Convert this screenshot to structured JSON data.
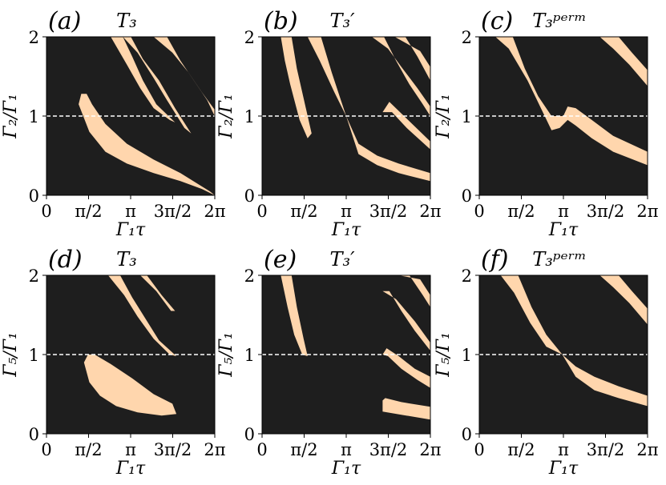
{
  "figure": {
    "background": "#ffffff",
    "plot_background": "#1e1e1e",
    "region_color": "#ffd6ad",
    "reference_line_color": "#ffffff"
  },
  "chart_data": [
    {
      "type": "heatmap",
      "panel_label": "(a)",
      "title": "T₃",
      "xlabel": "Γ₁τ",
      "ylabel": "Γ₂/Γ₁",
      "xlim": [
        0,
        6.2832
      ],
      "ylim": [
        0,
        2
      ],
      "xticks": [
        0,
        1.5708,
        3.1416,
        4.7124,
        6.2832
      ],
      "xtick_labels": [
        "0",
        "π/2",
        "π",
        "3π/2",
        "2π"
      ],
      "yticks": [
        0,
        1,
        2
      ],
      "ytick_labels": [
        "0",
        "1",
        "2"
      ],
      "reference_line_y": 1,
      "regions": [
        [
          [
            1.3,
            1.28
          ],
          [
            1.2,
            1.15
          ],
          [
            1.6,
            0.8
          ],
          [
            2.2,
            0.55
          ],
          [
            3.0,
            0.4
          ],
          [
            4.0,
            0.28
          ],
          [
            5.0,
            0.18
          ],
          [
            5.8,
            0.08
          ],
          [
            6.28,
            0.0
          ],
          [
            6.1,
            0.05
          ],
          [
            5.0,
            0.28
          ],
          [
            4.0,
            0.45
          ],
          [
            3.0,
            0.65
          ],
          [
            2.2,
            0.9
          ],
          [
            1.7,
            1.15
          ],
          [
            1.5,
            1.28
          ]
        ],
        [
          [
            2.4,
            2.0
          ],
          [
            2.85,
            2.0
          ],
          [
            3.2,
            1.75
          ],
          [
            3.6,
            1.45
          ],
          [
            4.1,
            1.15
          ],
          [
            4.8,
            0.92
          ],
          [
            4.6,
            0.95
          ],
          [
            4.0,
            1.1
          ],
          [
            3.5,
            1.35
          ],
          [
            3.0,
            1.65
          ]
        ],
        [
          [
            2.85,
            2.0
          ],
          [
            3.15,
            2.0
          ],
          [
            3.6,
            1.72
          ],
          [
            4.2,
            1.45
          ],
          [
            4.8,
            1.1
          ],
          [
            5.4,
            0.78
          ],
          [
            5.15,
            0.85
          ],
          [
            4.5,
            1.2
          ],
          [
            4.0,
            1.48
          ],
          [
            3.4,
            1.8
          ]
        ],
        [
          [
            4.0,
            2.0
          ],
          [
            4.5,
            2.0
          ],
          [
            5.0,
            1.7
          ],
          [
            5.5,
            1.45
          ],
          [
            6.0,
            1.2
          ],
          [
            6.28,
            1.0
          ],
          [
            6.28,
            1.08
          ],
          [
            5.8,
            1.3
          ],
          [
            5.3,
            1.55
          ],
          [
            4.7,
            1.8
          ]
        ]
      ]
    },
    {
      "type": "heatmap",
      "panel_label": "(b)",
      "title": "T₃′",
      "xlabel": "Γ₁τ",
      "ylabel": "Γ₂/Γ₁",
      "xlim": [
        0,
        6.2832
      ],
      "ylim": [
        0,
        2
      ],
      "xticks": [
        0,
        1.5708,
        3.1416,
        4.7124,
        6.2832
      ],
      "xtick_labels": [
        "0",
        "π/2",
        "π",
        "3π/2",
        "2π"
      ],
      "yticks": [
        0,
        1,
        2
      ],
      "ytick_labels": [
        "0",
        "1",
        "2"
      ],
      "reference_line_y": 1,
      "regions": [
        [
          [
            0.7,
            2.0
          ],
          [
            1.1,
            2.0
          ],
          [
            1.3,
            1.6
          ],
          [
            1.6,
            1.15
          ],
          [
            1.85,
            0.78
          ],
          [
            1.7,
            0.72
          ],
          [
            1.4,
            0.95
          ],
          [
            1.05,
            1.4
          ],
          [
            0.85,
            1.7
          ]
        ],
        [
          [
            1.7,
            2.0
          ],
          [
            2.2,
            2.0
          ],
          [
            2.6,
            1.55
          ],
          [
            3.14,
            1.0
          ],
          [
            3.6,
            0.65
          ],
          [
            4.3,
            0.5
          ],
          [
            5.1,
            0.4
          ],
          [
            6.28,
            0.28
          ],
          [
            6.28,
            0.18
          ],
          [
            5.1,
            0.28
          ],
          [
            4.3,
            0.38
          ],
          [
            3.6,
            0.52
          ],
          [
            3.14,
            1.0
          ],
          [
            2.7,
            1.3
          ],
          [
            2.15,
            1.7
          ]
        ],
        [
          [
            4.1,
            2.0
          ],
          [
            4.55,
            2.0
          ],
          [
            5.0,
            1.7
          ],
          [
            5.5,
            1.4
          ],
          [
            6.0,
            1.15
          ],
          [
            6.28,
            1.0
          ],
          [
            6.28,
            1.12
          ],
          [
            5.8,
            1.35
          ],
          [
            5.2,
            1.62
          ],
          [
            4.7,
            1.85
          ]
        ],
        [
          [
            4.95,
            2.0
          ],
          [
            5.35,
            2.0
          ],
          [
            5.8,
            1.75
          ],
          [
            6.28,
            1.45
          ],
          [
            6.28,
            1.62
          ],
          [
            5.9,
            1.82
          ]
        ],
        [
          [
            4.5,
            1.05
          ],
          [
            4.85,
            1.05
          ],
          [
            5.4,
            0.85
          ],
          [
            6.28,
            0.58
          ],
          [
            6.28,
            0.68
          ],
          [
            5.3,
            1.0
          ],
          [
            4.75,
            1.18
          ]
        ]
      ]
    },
    {
      "type": "heatmap",
      "panel_label": "(c)",
      "title": "T₃ᵖᵉʳᵐ",
      "xlabel": "Γ₁τ",
      "ylabel": "Γ₂/Γ₁",
      "xlim": [
        0,
        6.2832
      ],
      "ylim": [
        0,
        2
      ],
      "xticks": [
        0,
        1.5708,
        3.1416,
        4.7124,
        6.2832
      ],
      "xtick_labels": [
        "0",
        "π/2",
        "π",
        "3π/2",
        "2π"
      ],
      "yticks": [
        0,
        1,
        2
      ],
      "ytick_labels": [
        "0",
        "1",
        "2"
      ],
      "reference_line_y": 1,
      "regions": [
        [
          [
            0.6,
            2.0
          ],
          [
            1.25,
            2.0
          ],
          [
            1.7,
            1.6
          ],
          [
            2.2,
            1.25
          ],
          [
            2.7,
            1.0
          ],
          [
            3.14,
            1.0
          ],
          [
            3.3,
            1.12
          ],
          [
            3.6,
            1.1
          ],
          [
            4.2,
            0.95
          ],
          [
            5.0,
            0.75
          ],
          [
            6.28,
            0.55
          ],
          [
            6.28,
            0.38
          ],
          [
            5.0,
            0.55
          ],
          [
            4.2,
            0.72
          ],
          [
            3.6,
            0.88
          ],
          [
            3.3,
            0.95
          ],
          [
            3.0,
            0.85
          ],
          [
            2.7,
            0.82
          ],
          [
            2.3,
            1.1
          ],
          [
            1.8,
            1.45
          ],
          [
            1.1,
            1.85
          ]
        ],
        [
          [
            4.5,
            2.0
          ],
          [
            5.2,
            2.0
          ],
          [
            5.7,
            1.8
          ],
          [
            6.28,
            1.58
          ],
          [
            6.28,
            1.38
          ],
          [
            5.6,
            1.65
          ],
          [
            5.0,
            1.85
          ]
        ]
      ]
    },
    {
      "type": "heatmap",
      "panel_label": "(d)",
      "title": "T₃",
      "xlabel": "Γ₁τ",
      "ylabel": "Γ₅/Γ₁",
      "xlim": [
        0,
        6.2832
      ],
      "ylim": [
        0,
        2
      ],
      "xticks": [
        0,
        1.5708,
        3.1416,
        4.7124,
        6.2832
      ],
      "xtick_labels": [
        "0",
        "π/2",
        "π",
        "3π/2",
        "2π"
      ],
      "yticks": [
        0,
        1,
        2
      ],
      "ytick_labels": [
        "0",
        "1",
        "2"
      ],
      "reference_line_y": 1,
      "regions": [
        [
          [
            1.55,
            1.0
          ],
          [
            1.4,
            0.9
          ],
          [
            1.6,
            0.65
          ],
          [
            2.0,
            0.48
          ],
          [
            2.6,
            0.35
          ],
          [
            3.4,
            0.27
          ],
          [
            4.3,
            0.23
          ],
          [
            4.85,
            0.25
          ],
          [
            4.7,
            0.38
          ],
          [
            4.0,
            0.5
          ],
          [
            3.2,
            0.7
          ],
          [
            2.4,
            0.88
          ],
          [
            1.8,
            1.0
          ]
        ],
        [
          [
            2.3,
            2.0
          ],
          [
            2.75,
            2.0
          ],
          [
            3.2,
            1.72
          ],
          [
            3.7,
            1.45
          ],
          [
            4.2,
            1.18
          ],
          [
            4.85,
            0.98
          ],
          [
            4.6,
            1.0
          ],
          [
            4.0,
            1.2
          ],
          [
            3.4,
            1.48
          ],
          [
            2.9,
            1.75
          ]
        ],
        [
          [
            3.5,
            2.0
          ],
          [
            3.75,
            2.0
          ],
          [
            4.3,
            1.75
          ],
          [
            4.8,
            1.55
          ],
          [
            4.65,
            1.55
          ],
          [
            4.1,
            1.8
          ]
        ]
      ]
    },
    {
      "type": "heatmap",
      "panel_label": "(e)",
      "title": "T₃′",
      "xlabel": "Γ₁τ",
      "ylabel": "Γ₅/Γ₁",
      "xlim": [
        0,
        6.2832
      ],
      "ylim": [
        0,
        2
      ],
      "xticks": [
        0,
        1.5708,
        3.1416,
        4.7124,
        6.2832
      ],
      "xtick_labels": [
        "0",
        "π/2",
        "π",
        "3π/2",
        "2π"
      ],
      "yticks": [
        0,
        1,
        2
      ],
      "ytick_labels": [
        "0",
        "1",
        "2"
      ],
      "reference_line_y": 1,
      "regions": [
        [
          [
            0.7,
            2.0
          ],
          [
            1.1,
            2.0
          ],
          [
            1.3,
            1.6
          ],
          [
            1.55,
            1.2
          ],
          [
            1.7,
            0.98
          ],
          [
            1.5,
            1.0
          ],
          [
            1.2,
            1.25
          ],
          [
            0.95,
            1.6
          ]
        ],
        [
          [
            4.5,
            1.8
          ],
          [
            4.75,
            1.8
          ],
          [
            5.2,
            1.55
          ],
          [
            5.7,
            1.3
          ],
          [
            6.28,
            1.05
          ],
          [
            6.28,
            1.15
          ],
          [
            5.7,
            1.42
          ],
          [
            5.0,
            1.7
          ]
        ],
        [
          [
            5.1,
            2.0
          ],
          [
            5.5,
            2.0
          ],
          [
            6.0,
            1.75
          ],
          [
            6.28,
            1.6
          ],
          [
            6.28,
            1.75
          ],
          [
            5.9,
            1.95
          ]
        ],
        [
          [
            4.5,
            1.0
          ],
          [
            4.7,
            0.98
          ],
          [
            5.2,
            0.82
          ],
          [
            5.8,
            0.68
          ],
          [
            6.28,
            0.58
          ],
          [
            6.28,
            0.72
          ],
          [
            5.7,
            0.82
          ],
          [
            5.1,
            0.98
          ],
          [
            4.65,
            1.08
          ]
        ],
        [
          [
            4.5,
            0.42
          ],
          [
            4.6,
            0.45
          ],
          [
            5.2,
            0.4
          ],
          [
            6.28,
            0.34
          ],
          [
            6.28,
            0.18
          ],
          [
            5.2,
            0.24
          ],
          [
            4.5,
            0.28
          ]
        ]
      ]
    },
    {
      "type": "heatmap",
      "panel_label": "(f)",
      "title": "T₃ᵖᵉʳᵐ",
      "xlabel": "Γ₁τ",
      "ylabel": "Γ₅/Γ₁",
      "xlim": [
        0,
        6.2832
      ],
      "ylim": [
        0,
        2
      ],
      "xticks": [
        0,
        1.5708,
        3.1416,
        4.7124,
        6.2832
      ],
      "xtick_labels": [
        "0",
        "π/2",
        "π",
        "3π/2",
        "2π"
      ],
      "yticks": [
        0,
        1,
        2
      ],
      "ytick_labels": [
        "0",
        "1",
        "2"
      ],
      "reference_line_y": 1,
      "regions": [
        [
          [
            0.8,
            2.0
          ],
          [
            1.45,
            2.0
          ],
          [
            1.95,
            1.6
          ],
          [
            2.5,
            1.25
          ],
          [
            3.1,
            1.0
          ],
          [
            3.6,
            0.85
          ],
          [
            4.3,
            0.72
          ],
          [
            5.2,
            0.6
          ],
          [
            6.28,
            0.48
          ],
          [
            6.28,
            0.35
          ],
          [
            5.2,
            0.45
          ],
          [
            4.3,
            0.55
          ],
          [
            3.6,
            0.72
          ],
          [
            3.1,
            1.0
          ],
          [
            2.5,
            1.1
          ],
          [
            1.9,
            1.4
          ],
          [
            1.3,
            1.78
          ]
        ],
        [
          [
            4.5,
            2.0
          ],
          [
            5.2,
            2.0
          ],
          [
            5.7,
            1.8
          ],
          [
            6.28,
            1.58
          ],
          [
            6.28,
            1.38
          ],
          [
            5.6,
            1.65
          ],
          [
            5.0,
            1.85
          ]
        ]
      ]
    }
  ]
}
